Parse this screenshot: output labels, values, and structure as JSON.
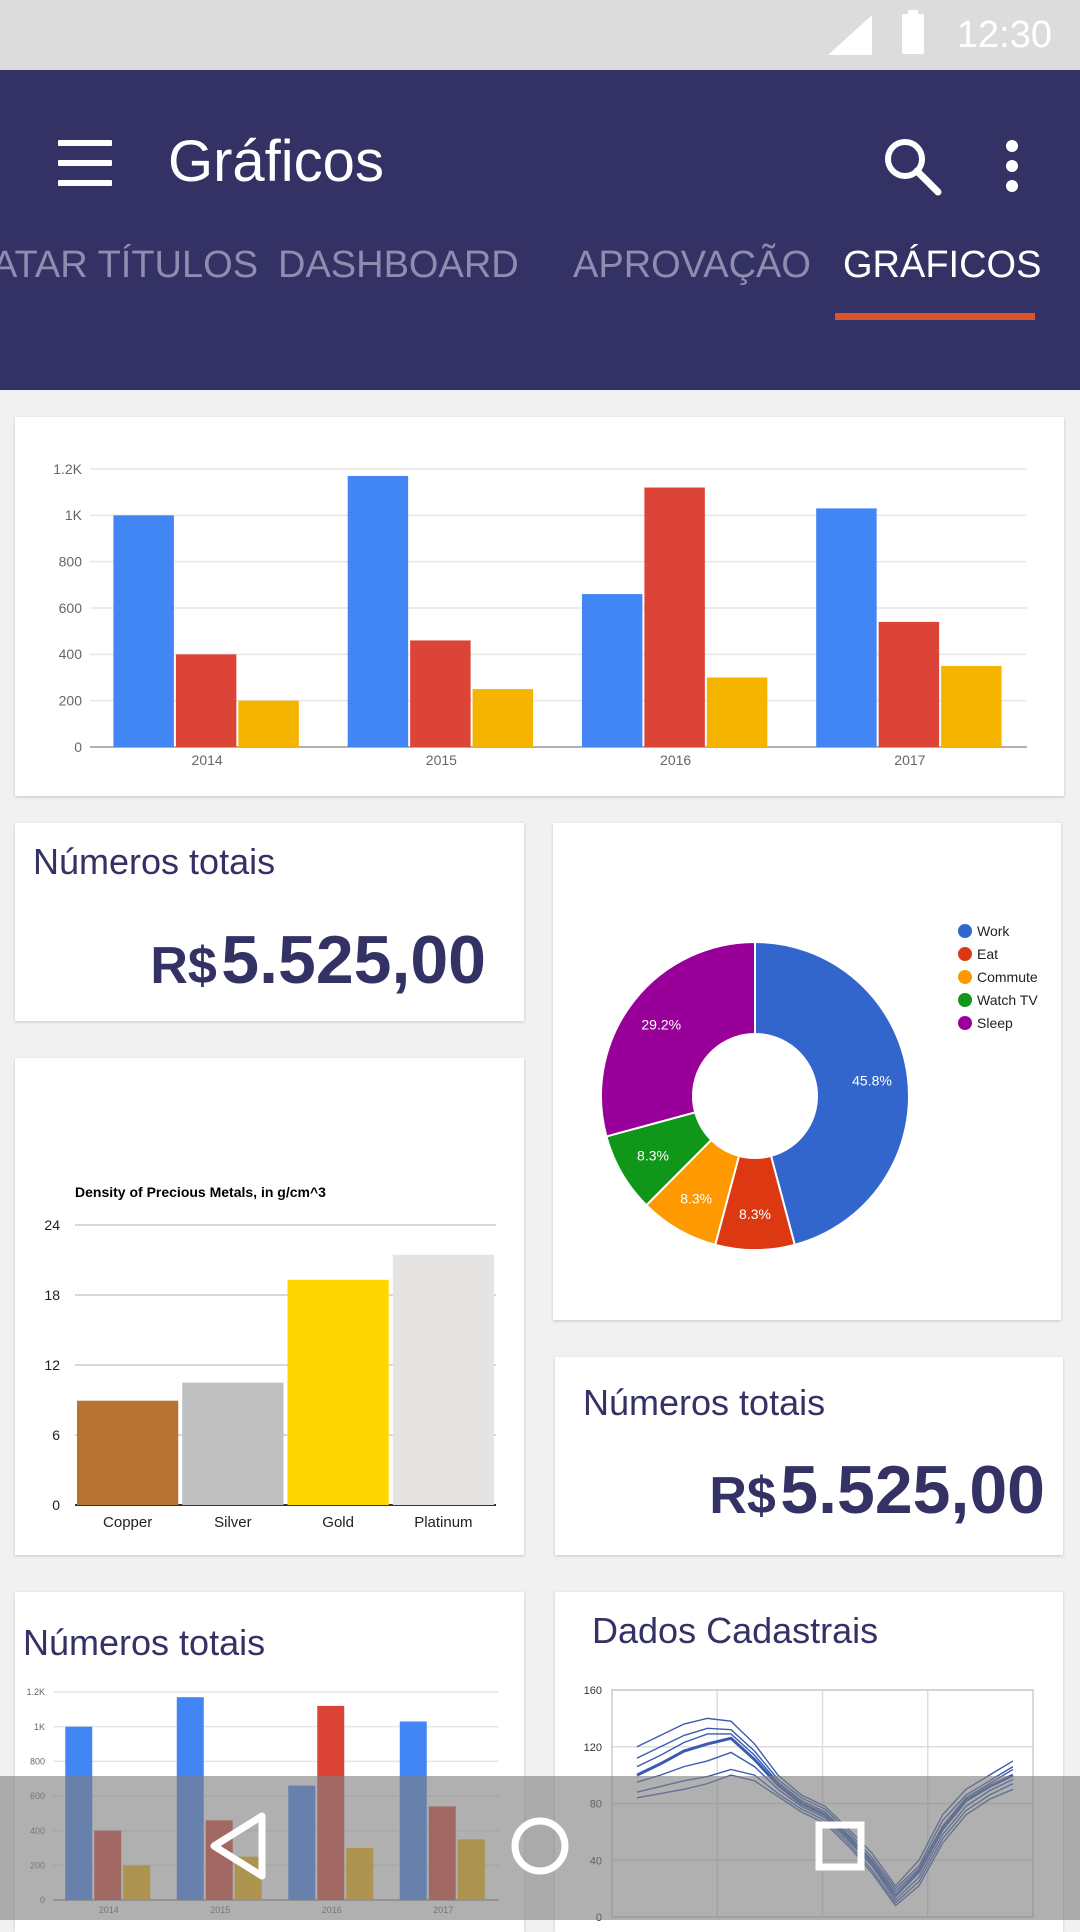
{
  "status_bar": {
    "time": "12:30"
  },
  "app_bar": {
    "title": "Gráficos"
  },
  "tabs": [
    {
      "label": "ATAR TÍTULOS"
    },
    {
      "label": "DASHBOARD"
    },
    {
      "label": "APROVAÇÃO"
    },
    {
      "label": "GRÁFICOS"
    }
  ],
  "total_cards": [
    {
      "label": "Números totais",
      "currency": "R$",
      "amount": "5.525,00"
    },
    {
      "label": "Números totais",
      "currency": "R$",
      "amount": "5.525,00"
    },
    {
      "label": "Números totais"
    }
  ],
  "line_card": {
    "title": "Dados Cadastrais"
  },
  "colors": {
    "appbar": "#343264",
    "indicator": "#d9542a",
    "blue": "#4285f4",
    "red": "#db4437",
    "yellow": "#f4b400"
  },
  "chart_data": [
    {
      "type": "bar",
      "categories": [
        "2014",
        "2015",
        "2016",
        "2017"
      ],
      "series": [
        {
          "values": [
            1000,
            1170,
            660,
            1030
          ],
          "color": "#4285f4"
        },
        {
          "values": [
            400,
            460,
            1120,
            540
          ],
          "color": "#db4437"
        },
        {
          "values": [
            200,
            250,
            300,
            350
          ],
          "color": "#f4b400"
        }
      ],
      "yticks": [
        "0",
        "200",
        "400",
        "600",
        "800",
        "1K",
        "1.2K"
      ],
      "ylim": [
        0,
        1200
      ]
    },
    {
      "type": "pie",
      "labels": [
        "Work",
        "Eat",
        "Commute",
        "Watch TV",
        "Sleep"
      ],
      "values": [
        45.8,
        8.3,
        8.3,
        8.3,
        29.2
      ],
      "slice_labels": [
        "45.8%",
        "8.3%",
        "8.3%",
        "8.3%",
        "29.2%"
      ],
      "colors": [
        "#3366cc",
        "#dc3912",
        "#ff9900",
        "#109618",
        "#990099"
      ],
      "legend": "right",
      "donut": true
    },
    {
      "type": "bar",
      "title": "Density of Precious Metals, in g/cm^3",
      "categories": [
        "Copper",
        "Silver",
        "Gold",
        "Platinum"
      ],
      "values": [
        8.94,
        10.49,
        19.3,
        21.45
      ],
      "colors": [
        "#b87333",
        "#c0c0c0",
        "#ffd700",
        "#e5e4e2"
      ],
      "yticks": [
        "0",
        "6",
        "12",
        "18",
        "24"
      ],
      "ylim": [
        0,
        24
      ]
    },
    {
      "type": "bar",
      "categories": [
        "2014",
        "2015",
        "2016",
        "2017"
      ],
      "series": [
        {
          "values": [
            1000,
            1170,
            660,
            1030
          ],
          "color": "#4285f4"
        },
        {
          "values": [
            400,
            460,
            1120,
            540
          ],
          "color": "#db4437"
        },
        {
          "values": [
            200,
            250,
            300,
            350
          ],
          "color": "#f4b400"
        }
      ],
      "yticks": [
        "0",
        "200",
        "400",
        "600",
        "800",
        "1K",
        "1.2K"
      ],
      "ylim": [
        0,
        1200
      ]
    },
    {
      "type": "line",
      "x": [
        0,
        1,
        2,
        3,
        4,
        5,
        6,
        7,
        8,
        9,
        10,
        11,
        12,
        13,
        14,
        15,
        16
      ],
      "series": [
        {
          "values": [
            120,
            128,
            136,
            140,
            138,
            122,
            100,
            86,
            78,
            62,
            45,
            22,
            40,
            72,
            90,
            100,
            110
          ]
        },
        {
          "values": [
            112,
            120,
            128,
            133,
            132,
            117,
            97,
            84,
            76,
            60,
            42,
            20,
            36,
            68,
            86,
            96,
            106
          ]
        },
        {
          "values": [
            106,
            114,
            123,
            129,
            129,
            114,
            95,
            82,
            74,
            58,
            40,
            18,
            34,
            64,
            84,
            94,
            104
          ]
        },
        {
          "values": [
            100,
            108,
            117,
            122,
            126,
            111,
            93,
            80,
            72,
            56,
            38,
            15,
            32,
            62,
            82,
            92,
            100
          ]
        },
        {
          "values": [
            95,
            100,
            106,
            110,
            116,
            106,
            90,
            78,
            70,
            54,
            36,
            12,
            28,
            58,
            78,
            89,
            97
          ]
        },
        {
          "values": [
            88,
            92,
            96,
            99,
            104,
            100,
            87,
            76,
            68,
            52,
            33,
            10,
            25,
            55,
            75,
            86,
            94
          ]
        },
        {
          "values": [
            84,
            87,
            90,
            94,
            100,
            96,
            85,
            74,
            66,
            50,
            31,
            8,
            22,
            52,
            72,
            83,
            90
          ]
        }
      ],
      "color": "#3a5bb0",
      "yticks": [
        "0",
        "40",
        "80",
        "120",
        "160"
      ],
      "ylim": [
        0,
        160
      ]
    }
  ]
}
